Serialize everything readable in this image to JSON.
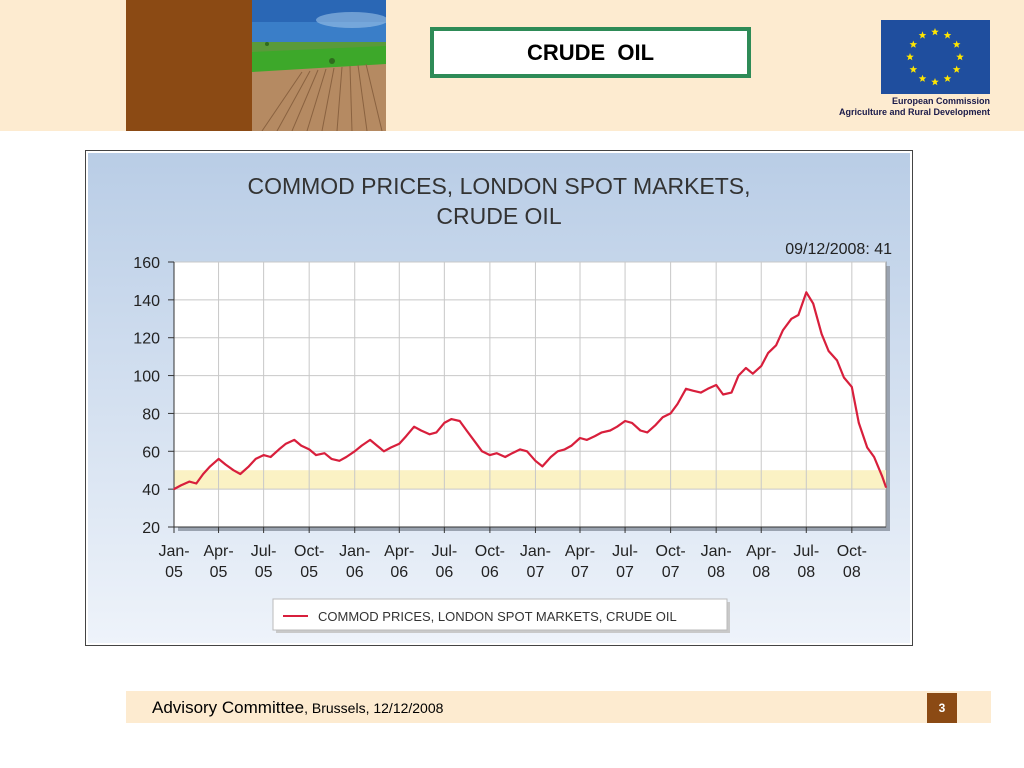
{
  "slide": {
    "title": "CRUDE  OIL",
    "eu_line1": "European Commission",
    "eu_line2": "Agriculture and Rural Development",
    "footer_main": "Advisory Committee",
    "footer_sub": ", Brussels, 12/12/2008",
    "page_number": "3"
  },
  "colors": {
    "header_band": "#fdebd0",
    "brown": "#8b4a14",
    "title_border": "#2e8b57",
    "eu_blue": "#1f4e9e",
    "series": "#d81f3c",
    "band": "#fbf2c4"
  },
  "chart_data": {
    "type": "line",
    "title_line1": "COMMOD PRICES, LONDON SPOT MARKETS,",
    "title_line2": "CRUDE OIL",
    "annotation": "09/12/2008: 41",
    "xlabel": "",
    "ylabel": "",
    "ylim": [
      20,
      160
    ],
    "yticks": [
      20,
      40,
      60,
      80,
      100,
      120,
      140,
      160
    ],
    "xlim": [
      "2005-01-01",
      "2008-12-09"
    ],
    "xticks": [
      {
        "top": "Jan-",
        "bottom": "05",
        "date": "2005-01-01"
      },
      {
        "top": "Apr-",
        "bottom": "05",
        "date": "2005-04-01"
      },
      {
        "top": "Jul-",
        "bottom": "05",
        "date": "2005-07-01"
      },
      {
        "top": "Oct-",
        "bottom": "05",
        "date": "2005-10-01"
      },
      {
        "top": "Jan-",
        "bottom": "06",
        "date": "2006-01-01"
      },
      {
        "top": "Apr-",
        "bottom": "06",
        "date": "2006-04-01"
      },
      {
        "top": "Jul-",
        "bottom": "06",
        "date": "2006-07-01"
      },
      {
        "top": "Oct-",
        "bottom": "06",
        "date": "2006-10-01"
      },
      {
        "top": "Jan-",
        "bottom": "07",
        "date": "2007-01-01"
      },
      {
        "top": "Apr-",
        "bottom": "07",
        "date": "2007-04-01"
      },
      {
        "top": "Jul-",
        "bottom": "07",
        "date": "2007-07-01"
      },
      {
        "top": "Oct-",
        "bottom": "07",
        "date": "2007-10-01"
      },
      {
        "top": "Jan-",
        "bottom": "08",
        "date": "2008-01-01"
      },
      {
        "top": "Apr-",
        "bottom": "08",
        "date": "2008-04-01"
      },
      {
        "top": "Jul-",
        "bottom": "08",
        "date": "2008-07-01"
      },
      {
        "top": "Oct-",
        "bottom": "08",
        "date": "2008-10-01"
      }
    ],
    "band": [
      40,
      50
    ],
    "grid": true,
    "legend_position": "bottom",
    "series": [
      {
        "name": "COMMOD PRICES, LONDON SPOT MARKETS, CRUDE OIL",
        "x": [
          "2005-01-01",
          "2005-01-15",
          "2005-02-01",
          "2005-02-15",
          "2005-03-01",
          "2005-03-15",
          "2005-04-01",
          "2005-04-15",
          "2005-05-01",
          "2005-05-15",
          "2005-06-01",
          "2005-06-15",
          "2005-07-01",
          "2005-07-15",
          "2005-08-01",
          "2005-08-15",
          "2005-09-01",
          "2005-09-15",
          "2005-10-01",
          "2005-10-15",
          "2005-11-01",
          "2005-11-15",
          "2005-12-01",
          "2005-12-15",
          "2006-01-01",
          "2006-01-15",
          "2006-02-01",
          "2006-02-15",
          "2006-03-01",
          "2006-03-15",
          "2006-04-01",
          "2006-04-15",
          "2006-05-01",
          "2006-05-15",
          "2006-06-01",
          "2006-06-15",
          "2006-07-01",
          "2006-07-15",
          "2006-08-01",
          "2006-08-15",
          "2006-09-01",
          "2006-09-15",
          "2006-10-01",
          "2006-10-15",
          "2006-11-01",
          "2006-11-15",
          "2006-12-01",
          "2006-12-15",
          "2007-01-01",
          "2007-01-15",
          "2007-02-01",
          "2007-02-15",
          "2007-03-01",
          "2007-03-15",
          "2007-04-01",
          "2007-04-15",
          "2007-05-01",
          "2007-05-15",
          "2007-06-01",
          "2007-06-15",
          "2007-07-01",
          "2007-07-15",
          "2007-08-01",
          "2007-08-15",
          "2007-09-01",
          "2007-09-15",
          "2007-10-01",
          "2007-10-15",
          "2007-11-01",
          "2007-11-15",
          "2007-12-01",
          "2007-12-15",
          "2008-01-01",
          "2008-01-15",
          "2008-02-01",
          "2008-02-15",
          "2008-03-01",
          "2008-03-15",
          "2008-04-01",
          "2008-04-15",
          "2008-05-01",
          "2008-05-15",
          "2008-06-01",
          "2008-06-15",
          "2008-07-01",
          "2008-07-15",
          "2008-08-01",
          "2008-08-15",
          "2008-09-01",
          "2008-09-15",
          "2008-10-01",
          "2008-10-15",
          "2008-11-01",
          "2008-11-15",
          "2008-12-01",
          "2008-12-09"
        ],
        "values": [
          40,
          42,
          44,
          43,
          48,
          52,
          56,
          53,
          50,
          48,
          52,
          56,
          58,
          57,
          61,
          64,
          66,
          63,
          61,
          58,
          59,
          56,
          55,
          57,
          60,
          63,
          66,
          63,
          60,
          62,
          64,
          68,
          73,
          71,
          69,
          70,
          75,
          77,
          76,
          71,
          65,
          60,
          58,
          59,
          57,
          59,
          61,
          60,
          55,
          52,
          57,
          60,
          61,
          63,
          67,
          66,
          68,
          70,
          71,
          73,
          76,
          75,
          71,
          70,
          74,
          78,
          80,
          85,
          93,
          92,
          91,
          93,
          95,
          90,
          91,
          100,
          104,
          101,
          105,
          112,
          116,
          124,
          130,
          132,
          144,
          138,
          122,
          113,
          108,
          99,
          94,
          75,
          62,
          57,
          47,
          41
        ]
      }
    ]
  }
}
